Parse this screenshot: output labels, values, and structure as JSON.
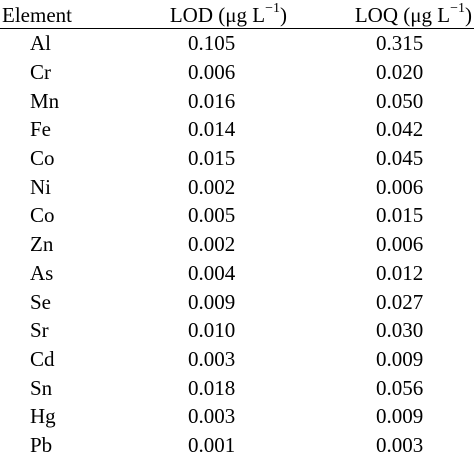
{
  "table": {
    "headers": {
      "element": "Element",
      "lod_prefix": "LOD (μg L",
      "lod_sup": "−1",
      "lod_suffix": ")",
      "loq_prefix": "LOQ (μg L",
      "loq_sup": "−1",
      "loq_suffix": ")"
    },
    "rows": [
      {
        "element": "Al",
        "lod": "0.105",
        "loq": "0.315"
      },
      {
        "element": "Cr",
        "lod": "0.006",
        "loq": "0.020"
      },
      {
        "element": "Mn",
        "lod": "0.016",
        "loq": "0.050"
      },
      {
        "element": "Fe",
        "lod": "0.014",
        "loq": "0.042"
      },
      {
        "element": "Co",
        "lod": "0.015",
        "loq": "0.045"
      },
      {
        "element": "Ni",
        "lod": "0.002",
        "loq": "0.006"
      },
      {
        "element": "Co",
        "lod": "0.005",
        "loq": "0.015"
      },
      {
        "element": "Zn",
        "lod": "0.002",
        "loq": "0.006"
      },
      {
        "element": "As",
        "lod": "0.004",
        "loq": "0.012"
      },
      {
        "element": "Se",
        "lod": "0.009",
        "loq": "0.027"
      },
      {
        "element": "Sr",
        "lod": "0.010",
        "loq": "0.030"
      },
      {
        "element": "Cd",
        "lod": "0.003",
        "loq": "0.009"
      },
      {
        "element": "Sn",
        "lod": "0.018",
        "loq": "0.056"
      },
      {
        "element": "Hg",
        "lod": "0.003",
        "loq": "0.009"
      },
      {
        "element": "Pb",
        "lod": "0.001",
        "loq": "0.003"
      }
    ]
  }
}
